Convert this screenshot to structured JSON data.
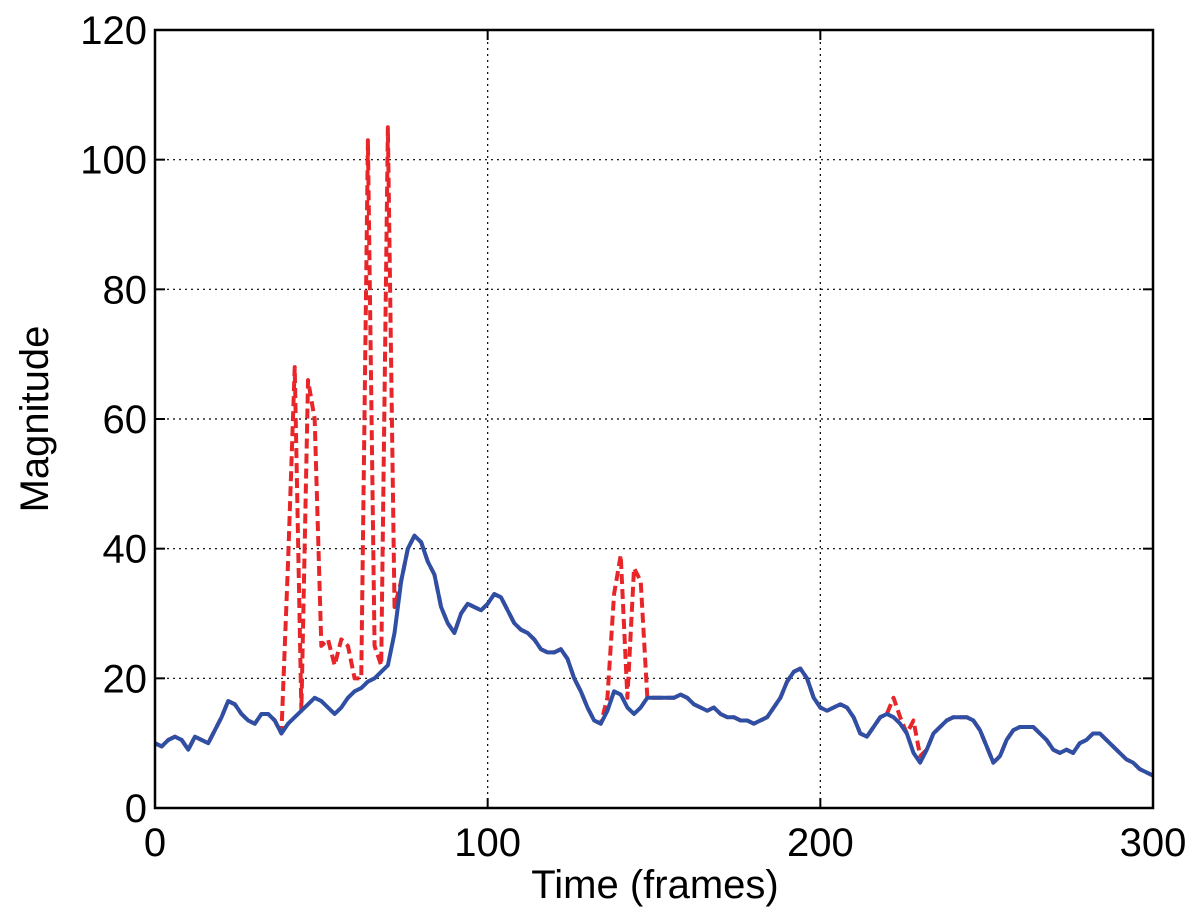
{
  "chart_data": {
    "type": "line",
    "xlabel": "Time (frames)",
    "ylabel": "Magnitude",
    "xlim": [
      0,
      300
    ],
    "xticks": [
      0,
      100,
      200,
      300
    ],
    "ylim": [
      0,
      120
    ],
    "yticks": [
      0,
      20,
      40,
      60,
      80,
      100,
      120
    ],
    "grid": true,
    "x": [
      0,
      2,
      4,
      6,
      8,
      10,
      12,
      14,
      16,
      18,
      20,
      22,
      24,
      26,
      28,
      30,
      32,
      34,
      36,
      38,
      40,
      42,
      44,
      46,
      48,
      50,
      52,
      54,
      56,
      58,
      60,
      62,
      64,
      66,
      68,
      70,
      72,
      74,
      76,
      78,
      80,
      82,
      84,
      86,
      88,
      90,
      92,
      94,
      96,
      98,
      100,
      102,
      104,
      106,
      108,
      110,
      112,
      114,
      116,
      118,
      120,
      122,
      124,
      126,
      128,
      130,
      132,
      134,
      136,
      138,
      140,
      142,
      144,
      146,
      148,
      150,
      152,
      154,
      156,
      158,
      160,
      162,
      164,
      166,
      168,
      170,
      172,
      174,
      176,
      178,
      180,
      182,
      184,
      186,
      188,
      190,
      192,
      194,
      196,
      198,
      200,
      202,
      204,
      206,
      208,
      210,
      212,
      214,
      216,
      218,
      220,
      222,
      224,
      226,
      228,
      230,
      232,
      234,
      236,
      238,
      240,
      242,
      244,
      246,
      248,
      250,
      252,
      254,
      256,
      258,
      260,
      262,
      264,
      266,
      268,
      270,
      272,
      274,
      276,
      278,
      280,
      282,
      284,
      286,
      288,
      290,
      292,
      294,
      296,
      298,
      300
    ],
    "series": [
      {
        "color": "#e8262a",
        "linestyle": "dashed",
        "values": [
          10,
          9.5,
          10.5,
          11,
          10.5,
          9,
          11,
          10.5,
          10,
          12,
          14,
          16.5,
          16,
          14.5,
          13.5,
          13,
          14.5,
          14.5,
          13.5,
          11.5,
          38,
          68,
          15,
          66,
          60,
          25,
          26,
          22,
          26,
          25,
          20,
          20,
          103,
          25,
          22,
          105,
          31,
          35,
          40,
          42,
          41,
          38,
          36,
          31,
          28.5,
          27,
          30,
          31.5,
          31,
          30.5,
          31.5,
          33,
          32.5,
          30.5,
          28.5,
          27.5,
          27,
          26,
          24.5,
          24,
          24,
          24.5,
          23,
          20,
          18,
          15.5,
          13.5,
          13,
          17,
          33,
          39,
          17,
          37,
          35,
          17,
          17,
          17,
          17,
          17,
          17.5,
          17,
          16,
          15.5,
          15,
          15.5,
          14.5,
          14,
          14,
          13.5,
          13.5,
          13,
          13.5,
          14,
          15.5,
          17,
          19.5,
          21,
          21.5,
          20,
          17,
          15.5,
          15,
          15.5,
          16,
          15.5,
          14,
          11.5,
          11,
          12.5,
          14,
          14.5,
          17,
          14,
          11.5,
          13.5,
          8,
          9,
          11.5,
          12.5,
          13.5,
          14,
          14,
          14,
          13.5,
          12,
          9.5,
          7,
          8,
          10.5,
          12,
          12.5,
          12.5,
          12.5,
          11.5,
          10.5,
          9,
          8.5,
          9,
          8.5,
          10,
          10.5,
          11.5,
          11.5,
          10.5,
          9.5,
          8.5,
          7.5,
          7,
          6,
          5.5,
          5
        ]
      },
      {
        "color": "#2e4fa3",
        "linestyle": "solid",
        "values": [
          10,
          9.5,
          10.5,
          11,
          10.5,
          9,
          11,
          10.5,
          10,
          12,
          14,
          16.5,
          16,
          14.5,
          13.5,
          13,
          14.5,
          14.5,
          13.5,
          11.5,
          13,
          14,
          15,
          16,
          17,
          16.5,
          15.5,
          14.5,
          15.5,
          17,
          18,
          18.5,
          19.5,
          20,
          21,
          22,
          27,
          35,
          40,
          42,
          41,
          38,
          36,
          31,
          28.5,
          27,
          30,
          31.5,
          31,
          30.5,
          31.5,
          33,
          32.5,
          30.5,
          28.5,
          27.5,
          27,
          26,
          24.5,
          24,
          24,
          24.5,
          23,
          20,
          18,
          15.5,
          13.5,
          13,
          15,
          18,
          17.5,
          15.5,
          14.5,
          15.5,
          17,
          17,
          17,
          17,
          17,
          17.5,
          17,
          16,
          15.5,
          15,
          15.5,
          14.5,
          14,
          14,
          13.5,
          13.5,
          13,
          13.5,
          14,
          15.5,
          17,
          19.5,
          21,
          21.5,
          20,
          17,
          15.5,
          15,
          15.5,
          16,
          15.5,
          14,
          11.5,
          11,
          12.5,
          14,
          14.5,
          14,
          13,
          11.5,
          8.5,
          7,
          9,
          11.5,
          12.5,
          13.5,
          14,
          14,
          14,
          13.5,
          12,
          9.5,
          7,
          8,
          10.5,
          12,
          12.5,
          12.5,
          12.5,
          11.5,
          10.5,
          9,
          8.5,
          9,
          8.5,
          10,
          10.5,
          11.5,
          11.5,
          10.5,
          9.5,
          8.5,
          7.5,
          7,
          6,
          5.5,
          5
        ]
      }
    ]
  }
}
